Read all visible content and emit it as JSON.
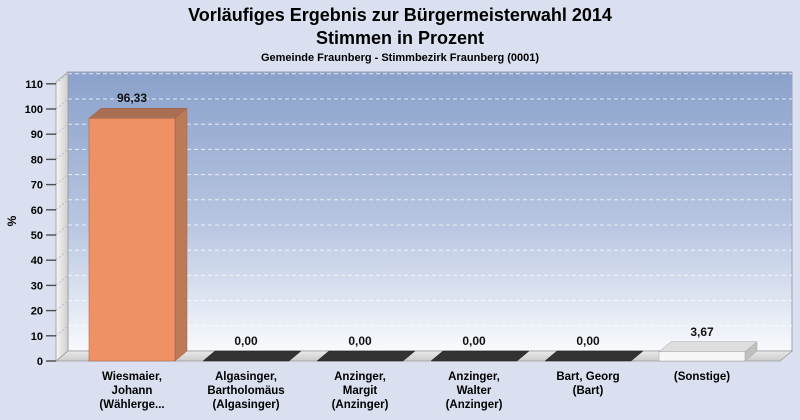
{
  "page": {
    "background": "#dbe0f1"
  },
  "header": {
    "title_line1": "Vorläufiges Ergebnis zur Bürgermeisterwahl 2014",
    "title_line2": "Stimmen in Prozent",
    "subtitle": "Gemeinde Fraunberg - Stimmbezirk Fraunberg (0001)"
  },
  "chart_data": {
    "type": "bar",
    "style": "3d-column",
    "title": "Vorläufiges Ergebnis zur Bürgermeisterwahl 2014 — Stimmen in Prozent",
    "subtitle": "Gemeinde Fraunberg - Stimmbezirk Fraunberg (0001)",
    "xlabel": "",
    "ylabel": "%",
    "ylim": [
      0,
      110
    ],
    "ytick_step": 10,
    "yticks": [
      "0",
      "10",
      "20",
      "30",
      "40",
      "50",
      "60",
      "70",
      "80",
      "90",
      "100",
      "110"
    ],
    "grid": "horizontal dashed white lines on gradient back panel",
    "legend": "none",
    "categories": [
      "Wiesmaier, Johann (Wählerge...",
      "Algasinger, Bartholomäus (Algasinger)",
      "Anzinger, Margit (Anzinger)",
      "Anzinger, Walter (Anzinger)",
      "Bart, Georg (Bart)",
      "(Sonstige)"
    ],
    "categories_lines": [
      [
        "Wiesmaier,",
        "Johann",
        "(Wählerge..."
      ],
      [
        "Algasinger,",
        "Bartholomäus",
        "(Algasinger)"
      ],
      [
        "Anzinger,",
        "Margit",
        "(Anzinger)"
      ],
      [
        "Anzinger,",
        "Walter",
        "(Anzinger)"
      ],
      [
        "Bart, Georg",
        "(Bart)"
      ],
      [
        "(Sonstige)"
      ]
    ],
    "values": [
      96.33,
      0,
      0,
      0,
      0,
      3.67
    ],
    "value_labels": [
      "96,33",
      "0,00",
      "0,00",
      "0,00",
      "0,00",
      "3,67"
    ],
    "bar_colors": [
      {
        "front": "#ee9164",
        "top": "#a96f55",
        "side": "#bd7a57",
        "stroke": "#9c6144"
      },
      {
        "front": "#363636",
        "top": "#333333",
        "side": "#262626",
        "stroke": "#1f1f1f"
      },
      {
        "front": "#363636",
        "top": "#333333",
        "side": "#262626",
        "stroke": "#1f1f1f"
      },
      {
        "front": "#363636",
        "top": "#333333",
        "side": "#262626",
        "stroke": "#1f1f1f"
      },
      {
        "front": "#363636",
        "top": "#333333",
        "side": "#262626",
        "stroke": "#1f1f1f"
      },
      {
        "front": "#f7f7f7",
        "top": "#dedede",
        "side": "#c0c0c0",
        "stroke": "#a3a3a3"
      }
    ],
    "plot_gradient": {
      "top": "#8aa1cb",
      "mid": "#b9c6e1",
      "bottom": "#f8fafd"
    },
    "wall_colors": {
      "light": "#f6f6f6",
      "dark": "#cfcfcf",
      "stroke": "#999999"
    },
    "gridline_color": "#ffffff"
  }
}
